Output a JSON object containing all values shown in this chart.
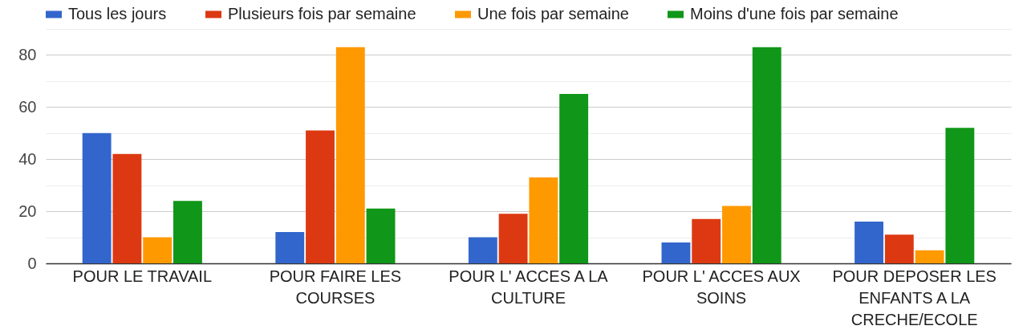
{
  "chart_data": {
    "type": "bar",
    "categories": [
      "POUR LE TRAVAIL",
      "POUR FAIRE LES COURSES",
      "POUR L' ACCES A LA CULTURE",
      "POUR L' ACCES AUX SOINS",
      "POUR DEPOSER LES ENFANTS A LA CRECHE/ECOLE"
    ],
    "series": [
      {
        "name": "Tous les jours",
        "color": "#3366cc",
        "values": [
          50,
          12,
          10,
          8,
          16
        ]
      },
      {
        "name": "Plusieurs fois par semaine",
        "color": "#dc3912",
        "values": [
          42,
          51,
          19,
          17,
          11
        ]
      },
      {
        "name": "Une fois par semaine",
        "color": "#ff9900",
        "values": [
          10,
          83,
          33,
          22,
          5
        ]
      },
      {
        "name": "Moins d'une fois par semaine",
        "color": "#109618",
        "values": [
          24,
          21,
          65,
          83,
          52
        ]
      }
    ],
    "ylim": [
      0,
      90
    ],
    "yticks": [
      0,
      {
        "value": 10,
        "label": null
      },
      20,
      {
        "value": 30,
        "label": null
      },
      40,
      {
        "value": 50,
        "label": null
      },
      60,
      {
        "value": 70,
        "label": null
      },
      80,
      {
        "value": 90,
        "label": null
      }
    ],
    "grid": "y",
    "legend": "top"
  }
}
